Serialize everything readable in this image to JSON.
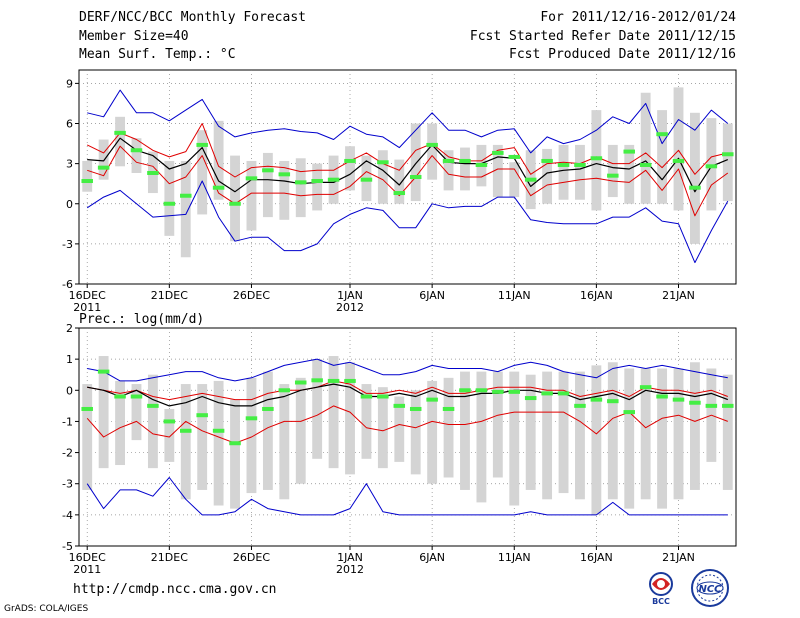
{
  "header": {
    "title": "DERF/NCC/BCC Monthly Forecast",
    "member_size": "Member Size=40",
    "variable": "Mean Surf. Temp.: °C",
    "forecast_range": "For 2011/12/16-2012/01/24",
    "started": "Fcst Started Refer Date 2011/12/15",
    "produced": "Fcst Produced Date 2011/12/16"
  },
  "footer": {
    "url": "http://cmdp.ncc.cma.gov.cn",
    "credit": "GrADS: COLA/IGES"
  },
  "logos": [
    {
      "name": "bcc-logo",
      "label": "BCC"
    },
    {
      "name": "ncc-logo",
      "label": "NCC"
    }
  ],
  "colors": {
    "box": "#d4d4d4",
    "ens_mean": "#000000",
    "std_band": "#e00000",
    "extreme_band": "#0000cc",
    "observed": "#44ee44",
    "grid": "#888888"
  },
  "chart_data": [
    {
      "type": "line",
      "title": "Mean Surf. Temp.: °C",
      "ylim": [
        -6,
        10
      ],
      "yticks": [
        "-6",
        "-3",
        "0",
        "3",
        "6",
        "9"
      ],
      "ytick_values": [
        -6,
        -3,
        0,
        3,
        6,
        9
      ],
      "xticks": [
        {
          "day": 0,
          "label": "16DEC",
          "sub": "2011"
        },
        {
          "day": 5,
          "label": "21DEC",
          "sub": ""
        },
        {
          "day": 10,
          "label": "26DEC",
          "sub": ""
        },
        {
          "day": 16,
          "label": "1JAN",
          "sub": "2012"
        },
        {
          "day": 21,
          "label": "6JAN",
          "sub": ""
        },
        {
          "day": 26,
          "label": "11JAN",
          "sub": ""
        },
        {
          "day": 31,
          "label": "16JAN",
          "sub": ""
        },
        {
          "day": 36,
          "label": "21JAN",
          "sub": ""
        }
      ],
      "days": 40,
      "box_low": [
        0.9,
        1.8,
        2.8,
        2.3,
        0.8,
        -2.4,
        -4.0,
        -0.8,
        0.3,
        -2.8,
        -2.0,
        -1.0,
        -1.2,
        -1.0,
        -0.5,
        0.0,
        1.0,
        0.2,
        0.0,
        0.0,
        0.2,
        1.8,
        1.0,
        1.0,
        1.3,
        0.5,
        0.5,
        -0.4,
        0.0,
        0.3,
        0.3,
        -0.5,
        0.5,
        0.0,
        0.0,
        0.0,
        -0.5,
        -3.0,
        -0.5,
        0.2
      ],
      "box_high": [
        3.2,
        4.8,
        6.5,
        4.9,
        3.9,
        3.2,
        3.2,
        5.5,
        6.2,
        3.6,
        3.2,
        3.8,
        3.2,
        3.4,
        3.0,
        3.6,
        4.3,
        3.6,
        4.0,
        3.3,
        6.0,
        6.0,
        4.0,
        4.2,
        4.4,
        4.4,
        3.1,
        4.0,
        4.1,
        4.4,
        4.4,
        7.0,
        4.4,
        4.4,
        8.3,
        7.0,
        8.7,
        6.8,
        6.4,
        6.0
      ],
      "mean": [
        3.3,
        3.2,
        4.9,
        4.0,
        3.6,
        2.6,
        3.0,
        4.2,
        1.7,
        0.9,
        1.8,
        1.8,
        1.7,
        1.5,
        1.6,
        1.6,
        2.2,
        3.2,
        2.5,
        1.4,
        3.0,
        4.4,
        3.1,
        3.0,
        3.0,
        3.5,
        3.4,
        1.3,
        2.3,
        2.5,
        2.6,
        3.0,
        2.7,
        2.6,
        3.2,
        1.8,
        3.4,
        0.9,
        2.8,
        3.3
      ],
      "std_high": [
        4.4,
        3.8,
        5.3,
        4.8,
        4.0,
        3.5,
        3.9,
        6.0,
        2.8,
        2.0,
        2.7,
        2.8,
        2.7,
        2.4,
        2.5,
        2.5,
        3.2,
        3.8,
        3.0,
        2.5,
        4.0,
        4.5,
        3.5,
        3.2,
        3.2,
        4.0,
        4.2,
        2.2,
        3.0,
        3.1,
        3.0,
        3.5,
        3.0,
        3.0,
        3.8,
        2.7,
        4.0,
        2.2,
        3.5,
        3.8
      ],
      "std_low": [
        2.5,
        2.1,
        4.3,
        3.1,
        2.8,
        1.5,
        2.0,
        3.6,
        0.8,
        0.0,
        0.8,
        0.8,
        0.8,
        0.6,
        0.7,
        0.7,
        1.3,
        2.4,
        1.8,
        0.6,
        2.0,
        3.6,
        2.2,
        2.0,
        2.0,
        2.6,
        2.6,
        0.6,
        1.4,
        1.6,
        1.8,
        1.9,
        1.7,
        1.6,
        2.5,
        1.0,
        2.6,
        -0.9,
        1.4,
        2.3
      ],
      "max": [
        6.8,
        6.5,
        8.5,
        6.8,
        6.8,
        6.2,
        7.0,
        7.8,
        5.8,
        5.0,
        5.3,
        5.5,
        5.6,
        5.4,
        5.3,
        4.8,
        5.8,
        5.2,
        5.0,
        4.2,
        5.5,
        6.8,
        5.5,
        5.5,
        5.0,
        5.5,
        5.6,
        3.8,
        5.0,
        4.5,
        4.8,
        5.5,
        6.5,
        6.0,
        7.5,
        4.5,
        6.3,
        5.5,
        7.0,
        6.0
      ],
      "min": [
        -0.3,
        0.5,
        1.0,
        0.0,
        -1.0,
        -0.9,
        -0.8,
        1.7,
        -1.0,
        -2.8,
        -2.5,
        -2.5,
        -3.5,
        -3.5,
        -3.0,
        -1.5,
        -0.8,
        -0.3,
        -0.5,
        -1.8,
        -1.8,
        0.0,
        -0.3,
        -0.2,
        -0.2,
        0.5,
        0.5,
        -1.2,
        -1.4,
        -1.5,
        -1.5,
        -1.5,
        -1.0,
        -1.0,
        -0.3,
        -1.3,
        -1.5,
        -4.4,
        -2.0,
        0.2
      ],
      "observed": [
        1.7,
        2.7,
        5.3,
        4.0,
        2.3,
        0.0,
        0.6,
        4.4,
        1.2,
        0.0,
        1.9,
        2.5,
        2.2,
        1.6,
        1.7,
        1.8,
        3.2,
        1.8,
        3.1,
        0.8,
        2.0,
        4.4,
        3.2,
        3.2,
        2.9,
        3.8,
        3.5,
        1.8,
        3.2,
        2.9,
        2.9,
        3.4,
        2.1,
        3.9,
        2.9,
        5.2,
        3.2,
        1.2,
        2.8,
        3.7
      ]
    },
    {
      "type": "line",
      "title": "Prec.: log(mm/d)",
      "ylim": [
        -5,
        2
      ],
      "yticks": [
        "-5",
        "-4",
        "-3",
        "-2",
        "-1",
        "0",
        "1",
        "2"
      ],
      "ytick_values": [
        -5,
        -4,
        -3,
        -2,
        -1,
        0,
        1,
        2
      ],
      "xticks": [
        {
          "day": 0,
          "label": "16DEC",
          "sub": "2011"
        },
        {
          "day": 5,
          "label": "21DEC",
          "sub": ""
        },
        {
          "day": 10,
          "label": "26DEC",
          "sub": ""
        },
        {
          "day": 16,
          "label": "1JAN",
          "sub": "2012"
        },
        {
          "day": 21,
          "label": "6JAN",
          "sub": ""
        },
        {
          "day": 26,
          "label": "11JAN",
          "sub": ""
        },
        {
          "day": 31,
          "label": "16JAN",
          "sub": ""
        },
        {
          "day": 36,
          "label": "21JAN",
          "sub": ""
        }
      ],
      "days": 40,
      "box_low": [
        -3.2,
        -2.5,
        -2.4,
        -1.6,
        -2.5,
        -2.3,
        -3.5,
        -3.2,
        -3.7,
        -3.8,
        -3.3,
        -3.2,
        -3.5,
        -3.0,
        -2.2,
        -2.5,
        -2.7,
        -2.2,
        -2.5,
        -2.3,
        -2.7,
        -3.0,
        -2.8,
        -3.2,
        -3.6,
        -2.8,
        -3.7,
        -3.2,
        -3.5,
        -3.3,
        -3.5,
        -4.0,
        -3.5,
        -3.8,
        -3.5,
        -3.8,
        -3.5,
        -3.2,
        -2.3,
        -3.2
      ],
      "box_high": [
        0.2,
        1.1,
        0.3,
        0.2,
        0.5,
        -0.6,
        0.2,
        0.2,
        0.3,
        -0.3,
        0.4,
        0.6,
        0.2,
        0.4,
        1.0,
        1.1,
        0.9,
        0.2,
        0.1,
        -0.2,
        0.0,
        0.3,
        0.4,
        0.6,
        0.6,
        0.6,
        0.6,
        0.5,
        0.6,
        0.6,
        0.6,
        0.8,
        0.9,
        0.7,
        0.7,
        0.7,
        0.7,
        0.9,
        0.7,
        0.5
      ],
      "mean": [
        0.1,
        0.0,
        -0.2,
        0.0,
        -0.3,
        -0.5,
        -0.4,
        -0.2,
        -0.4,
        -0.5,
        -0.5,
        -0.3,
        -0.2,
        0.0,
        0.1,
        0.2,
        0.1,
        -0.2,
        -0.2,
        -0.1,
        -0.2,
        0.0,
        -0.2,
        -0.2,
        -0.1,
        -0.1,
        0.0,
        0.0,
        -0.1,
        -0.1,
        -0.3,
        -0.2,
        -0.1,
        -0.3,
        0.0,
        -0.1,
        -0.1,
        -0.2,
        -0.1,
        -0.3
      ],
      "std_high": [
        0.1,
        0.0,
        -0.1,
        0.0,
        -0.2,
        -0.3,
        -0.2,
        -0.1,
        -0.2,
        -0.3,
        -0.3,
        -0.1,
        0.0,
        0.0,
        0.1,
        0.3,
        0.2,
        -0.1,
        -0.1,
        0.0,
        -0.1,
        0.1,
        -0.1,
        -0.1,
        0.0,
        0.1,
        0.1,
        0.1,
        0.0,
        0.0,
        -0.2,
        -0.1,
        0.0,
        -0.2,
        0.1,
        0.0,
        0.0,
        -0.1,
        0.0,
        -0.2
      ],
      "std_low": [
        -0.9,
        -1.5,
        -1.2,
        -1.0,
        -1.4,
        -1.5,
        -1.0,
        -1.3,
        -1.5,
        -1.7,
        -1.5,
        -1.2,
        -1.0,
        -1.0,
        -0.8,
        -0.5,
        -0.7,
        -1.2,
        -1.3,
        -1.1,
        -1.2,
        -1.0,
        -1.1,
        -1.1,
        -1.0,
        -0.8,
        -0.7,
        -0.7,
        -0.7,
        -0.7,
        -1.0,
        -1.4,
        -0.9,
        -0.7,
        -1.2,
        -0.9,
        -0.8,
        -1.0,
        -0.8,
        -1.0
      ],
      "max": [
        0.7,
        0.6,
        0.3,
        0.3,
        0.4,
        0.5,
        0.6,
        0.6,
        0.4,
        0.3,
        0.4,
        0.6,
        0.8,
        0.9,
        1.0,
        0.8,
        0.9,
        0.7,
        0.5,
        0.5,
        0.6,
        0.8,
        0.7,
        0.7,
        0.7,
        0.6,
        0.8,
        0.9,
        0.8,
        0.6,
        0.5,
        0.4,
        0.7,
        0.8,
        0.7,
        0.8,
        0.7,
        0.6,
        0.5,
        0.4
      ],
      "min": [
        -3.0,
        -3.8,
        -3.2,
        -3.2,
        -3.4,
        -2.8,
        -3.5,
        -4.0,
        -4.0,
        -3.9,
        -3.5,
        -3.8,
        -3.9,
        -4.0,
        -4.0,
        -4.0,
        -3.8,
        -3.0,
        -3.9,
        -4.0,
        -4.0,
        -4.0,
        -4.0,
        -4.0,
        -4.0,
        -4.0,
        -4.0,
        -3.9,
        -4.0,
        -4.0,
        -4.0,
        -4.0,
        -3.6,
        -4.0,
        -4.0,
        -4.0,
        -4.0,
        -4.0,
        -4.0,
        -4.0
      ],
      "observed": [
        -0.6,
        0.6,
        -0.2,
        -0.2,
        -0.5,
        -1.0,
        -1.3,
        -0.8,
        -1.3,
        -1.7,
        -0.9,
        -0.6,
        0.0,
        0.25,
        0.32,
        0.3,
        0.3,
        -0.2,
        -0.2,
        -0.5,
        -0.6,
        -0.3,
        -0.6,
        0.0,
        0.0,
        -0.05,
        -0.05,
        -0.25,
        -0.1,
        -0.1,
        -0.5,
        -0.3,
        -0.35,
        -0.7,
        0.1,
        -0.2,
        -0.3,
        -0.4,
        -0.5,
        -0.5
      ]
    }
  ]
}
